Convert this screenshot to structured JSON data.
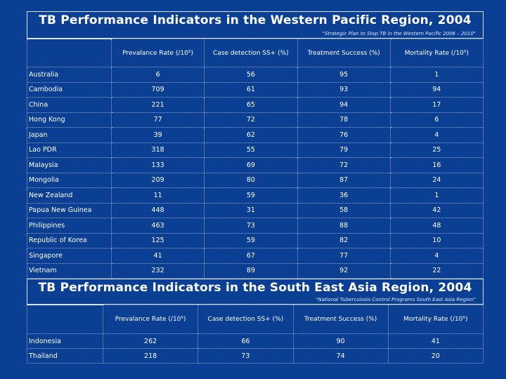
{
  "section1": {
    "title": "TB Performance Indicators in the Western Pacific Region, 2004",
    "subtitle": "\"Strategic Plan to Stop TB in the Western Pacific 2006 – 2010\"",
    "headers": [
      "",
      "Prevalance Rate (/10⁵)",
      "Case detection SS+ (%)",
      "Treatment Success (%)",
      "Mortality Rate (/10⁵)"
    ],
    "rows": [
      [
        "Australia",
        "6",
        "56",
        "95",
        "1"
      ],
      [
        "Cambodia",
        "709",
        "61",
        "93",
        "94"
      ],
      [
        "China",
        "221",
        "65",
        "94",
        "17"
      ],
      [
        "Hong Kong",
        "77",
        "72",
        "78",
        "6"
      ],
      [
        "Japan",
        "39",
        "62",
        "76",
        "4"
      ],
      [
        "Lao PDR",
        "318",
        "55",
        "79",
        "25"
      ],
      [
        "Malaysia",
        "133",
        "69",
        "72",
        "16"
      ],
      [
        "Mongolia",
        "209",
        "80",
        "87",
        "24"
      ],
      [
        "New Zealand",
        "11",
        "59",
        "36",
        "1"
      ],
      [
        "Papua New Guinea",
        "448",
        "31",
        "58",
        "42"
      ],
      [
        "Philippines",
        "463",
        "73",
        "88",
        "48"
      ],
      [
        "Republic of Korea",
        "125",
        "59",
        "82",
        "10"
      ],
      [
        "Singapore",
        "41",
        "67",
        "77",
        "4"
      ],
      [
        "Vietnam",
        "232",
        "89",
        "92",
        "22"
      ]
    ]
  },
  "section2": {
    "title": "TB Performance Indicators in the South East Asia Region, 2004",
    "subtitle": "\"National Tuberculosis Control Programs South East Asia Region\"",
    "headers": [
      "",
      "Prevalance Rate (/10⁵)",
      "Case detection SS+ (%)",
      "Treatment Success (%)",
      "Mortality Rate (/10⁵)"
    ],
    "rows": [
      [
        "Indonesia",
        "262",
        "66",
        "90",
        "41"
      ],
      [
        "Thailand",
        "218",
        "73",
        "74",
        "20"
      ]
    ]
  }
}
